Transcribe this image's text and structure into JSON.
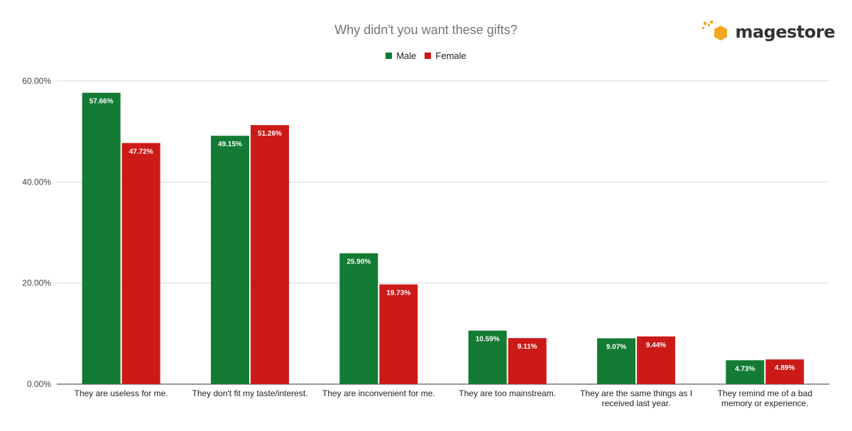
{
  "logo": {
    "text": "magestore"
  },
  "chart_data": {
    "type": "bar",
    "title": "Why didn't you want these gifts?",
    "xlabel": "",
    "ylabel": "",
    "ylim": [
      0,
      60
    ],
    "yticks": [
      "0.00%",
      "20.00%",
      "40.00%",
      "60.00%"
    ],
    "ytick_values": [
      0,
      20,
      40,
      60
    ],
    "grid": true,
    "legend_position": "top",
    "categories": [
      [
        "They are useless for me."
      ],
      [
        "They don't fit my taste/interest."
      ],
      [
        "They are inconvenient for me."
      ],
      [
        "They are too mainstream."
      ],
      [
        "They are the same things as I",
        "received last year."
      ],
      [
        "They remind me of a bad",
        "memory or experience."
      ]
    ],
    "series": [
      {
        "name": "Male",
        "color": "#137b33",
        "values": [
          57.66,
          49.15,
          25.9,
          10.59,
          9.07,
          4.73
        ],
        "labels": [
          "57.66%",
          "49.15%",
          "25.90%",
          "10.59%",
          "9.07%",
          "4.73%"
        ]
      },
      {
        "name": "Female",
        "color": "#cc1a17",
        "values": [
          47.72,
          51.26,
          19.73,
          9.11,
          9.44,
          4.89
        ],
        "labels": [
          "47.72%",
          "51.26%",
          "19.73%",
          "9.11%",
          "9.44%",
          "4.89%"
        ]
      }
    ]
  }
}
